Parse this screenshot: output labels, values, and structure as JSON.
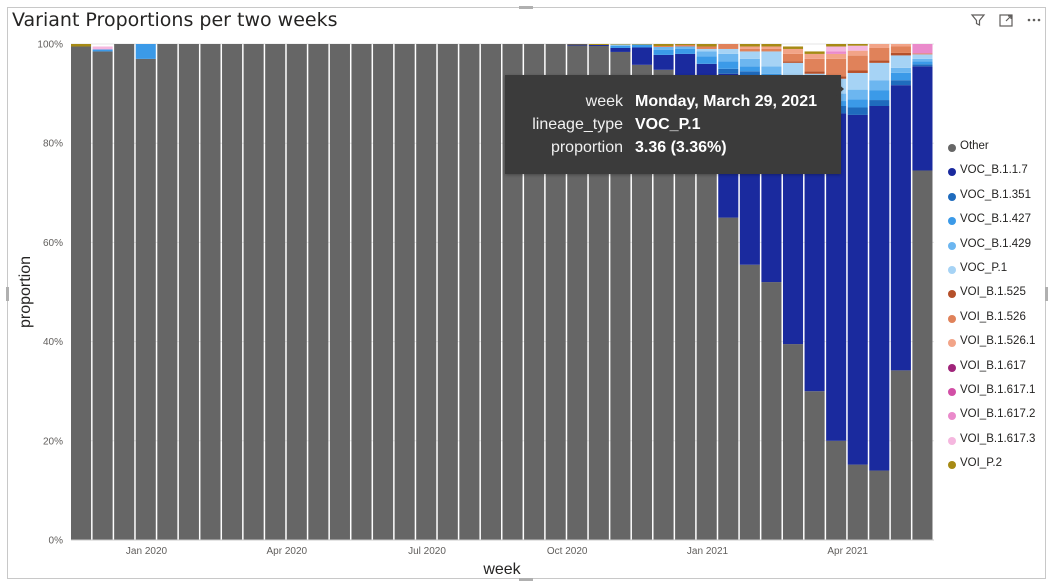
{
  "visual": {
    "title": "Variant Proportions per two weeks",
    "toolbar": [
      "filter-icon",
      "focus-mode-icon",
      "more-options-icon"
    ]
  },
  "tooltip": {
    "rows": [
      {
        "key": "week",
        "value": "Monday, March 29, 2021"
      },
      {
        "key": "lineage_type",
        "value": "VOC_P.1"
      },
      {
        "key": "proportion",
        "value": "3.36 (3.36%)"
      }
    ]
  },
  "chart_data": {
    "type": "bar",
    "stacked": true,
    "xlabel": "week",
    "ylabel": "proportion",
    "ylim": [
      0,
      100
    ],
    "y_ticks": [
      "0%",
      "20%",
      "40%",
      "60%",
      "80%",
      "100%"
    ],
    "x_tick_labels": [
      {
        "label": "Jan 2020",
        "index": 3
      },
      {
        "label": "Apr 2020",
        "index": 9.5
      },
      {
        "label": "Jul 2020",
        "index": 16
      },
      {
        "label": "Oct 2020",
        "index": 22.5
      },
      {
        "label": "Jan 2021",
        "index": 29
      },
      {
        "label": "Apr 2021",
        "index": 35.5
      }
    ],
    "legend_position": "right",
    "series": [
      {
        "name": "Other",
        "color": "#666666",
        "values": [
          99.5,
          98.5,
          100,
          97,
          100,
          100,
          100,
          100,
          100,
          100,
          100,
          100,
          100,
          100,
          100,
          100,
          100,
          100,
          100,
          100,
          100,
          100,
          100,
          99.7,
          99.6,
          98.4,
          95.8,
          94.8,
          93,
          87,
          65,
          55.5,
          52,
          39.5,
          30,
          20,
          15.2,
          14,
          34.2,
          74.5
        ]
      },
      {
        "name": "VOC_B.1.1.7",
        "color": "#1a2a9e",
        "values": [
          0,
          0,
          0,
          0,
          0.3,
          0,
          0,
          0,
          0,
          0,
          0,
          0,
          0,
          0,
          0,
          0,
          0,
          0,
          0,
          0,
          0,
          0,
          0,
          0.2,
          0.2,
          0.8,
          3.5,
          3,
          5,
          9,
          29,
          38,
          40,
          50,
          56,
          66,
          70.5,
          73.5,
          57.5,
          21
        ]
      },
      {
        "name": "VOC_B.1.351",
        "color": "#1f6bbd",
        "values": [
          0,
          0,
          0,
          0,
          0,
          0,
          0,
          0,
          0,
          0,
          0,
          0,
          0,
          0,
          0,
          0,
          0,
          0,
          0,
          0,
          0,
          0,
          0,
          0,
          0,
          0,
          0,
          0,
          0,
          0,
          1,
          1,
          1,
          1.2,
          1.5,
          1.5,
          1.5,
          1.2,
          1,
          0.4
        ]
      },
      {
        "name": "VOC_B.1.427",
        "color": "#3b9ae8",
        "values": [
          0,
          0.4,
          0,
          3,
          0,
          0,
          0,
          0,
          0,
          0,
          0,
          0,
          0,
          0,
          0,
          0,
          0,
          0,
          0,
          0,
          0,
          0,
          0,
          0,
          0,
          0.4,
          0.5,
          1,
          1,
          1.5,
          1.5,
          1,
          1,
          1,
          1,
          1,
          1.6,
          2,
          1.5,
          0.6
        ]
      },
      {
        "name": "VOC_B.1.429",
        "color": "#6cb6f0",
        "values": [
          0,
          0,
          0,
          0,
          0,
          0,
          0,
          0,
          0,
          0,
          0,
          0,
          0,
          0,
          0,
          0,
          0,
          0,
          0,
          0,
          0,
          0,
          0,
          0,
          0,
          0.1,
          0.1,
          0.6,
          0.5,
          1,
          1.5,
          1.5,
          1.5,
          2,
          2,
          1.5,
          2,
          2,
          1,
          0.5
        ]
      },
      {
        "name": "VOC_P.1",
        "color": "#a6d3f5",
        "values": [
          0,
          0,
          0,
          0,
          0,
          0,
          0,
          0,
          0,
          0,
          0,
          0,
          0,
          0,
          0,
          0,
          0,
          0,
          0,
          0,
          0,
          0,
          0,
          0,
          0,
          0.2,
          0,
          0,
          0,
          0.5,
          1,
          1.5,
          3,
          2.5,
          3.5,
          3,
          3.36,
          3.5,
          2.5,
          0.9
        ]
      },
      {
        "name": "VOI_B.1.525",
        "color": "#b5502a",
        "values": [
          0,
          0,
          0,
          0,
          0,
          0,
          0,
          0,
          0,
          0,
          0,
          0,
          0,
          0,
          0,
          0,
          0,
          0,
          0,
          0,
          0,
          0,
          0,
          0,
          0,
          0,
          0,
          0,
          0,
          0,
          0,
          0,
          0,
          0.3,
          0.5,
          0.5,
          0.5,
          0.5,
          0.5,
          0
        ]
      },
      {
        "name": "VOI_B.1.526",
        "color": "#e0825a",
        "values": [
          0,
          0,
          0,
          0,
          0,
          0,
          0,
          0,
          0,
          0,
          0,
          0,
          0,
          0,
          0,
          0,
          0,
          0,
          0,
          0,
          0,
          0,
          0,
          0,
          0,
          0,
          0,
          0.2,
          0.3,
          0.5,
          1,
          0.5,
          0.5,
          1.5,
          2.5,
          3.5,
          3,
          2.5,
          1.3,
          0.2
        ]
      },
      {
        "name": "VOI_B.1.526.1",
        "color": "#f2a488",
        "values": [
          0,
          0,
          0,
          0,
          0,
          0,
          0,
          0,
          0,
          0,
          0,
          0,
          0,
          0,
          0,
          0,
          0,
          0,
          0,
          0,
          0,
          0,
          0,
          0,
          0,
          0,
          0,
          0,
          0,
          0,
          0.5,
          0.5,
          0.5,
          1,
          1,
          1,
          1,
          1,
          1,
          0
        ]
      },
      {
        "name": "VOI_B.1.617",
        "color": "#a0247a",
        "values": [
          0,
          0,
          0,
          0,
          0,
          0,
          0,
          0,
          0,
          0,
          0,
          0,
          0,
          0,
          0,
          0,
          0,
          0,
          0,
          0,
          0,
          0,
          0,
          0,
          0,
          0,
          0,
          0,
          0,
          0,
          0,
          0,
          0,
          0,
          0,
          0,
          0,
          0,
          0,
          0
        ]
      },
      {
        "name": "VOI_B.1.617.1",
        "color": "#d24fa6",
        "values": [
          0,
          0,
          0,
          0,
          0,
          0,
          0,
          0,
          0,
          0,
          0,
          0,
          0,
          0,
          0,
          0,
          0,
          0,
          0,
          0,
          0,
          0,
          0,
          0,
          0,
          0,
          0,
          0,
          0,
          0,
          0,
          0,
          0,
          0,
          0,
          0,
          0,
          0,
          0,
          0
        ]
      },
      {
        "name": "VOI_B.1.617.2",
        "color": "#ea8acb",
        "values": [
          0,
          0,
          0,
          0,
          0,
          0,
          0,
          0,
          0,
          0,
          0,
          0,
          0,
          0,
          0,
          0,
          0,
          0,
          0,
          0,
          0,
          0,
          0,
          0,
          0,
          0,
          0,
          0,
          0,
          0,
          0,
          0,
          0,
          0,
          0,
          0.5,
          0,
          0.3,
          1.5,
          1.9
        ]
      },
      {
        "name": "VOI_B.1.617.3",
        "color": "#f5b7df",
        "values": [
          0,
          0.6,
          0,
          0,
          0,
          0,
          0,
          0,
          0,
          0,
          0,
          0,
          0,
          0,
          0,
          0,
          0,
          0,
          0,
          0,
          0,
          0,
          0,
          0,
          0,
          0,
          0,
          0,
          0,
          0,
          0,
          0,
          0,
          0,
          0,
          1,
          1,
          1,
          0.7,
          0
        ]
      },
      {
        "name": "VOI_P.2",
        "color": "#a68a14",
        "values": [
          0.5,
          0,
          0,
          0,
          0,
          0,
          0,
          0,
          0,
          0,
          0,
          0,
          0,
          0,
          0,
          0,
          0,
          0,
          0,
          0,
          0,
          0,
          0,
          0.1,
          0.2,
          0.1,
          0.1,
          0.4,
          0.2,
          0.5,
          0.5,
          0.5,
          0.5,
          0.5,
          0.5,
          0.5,
          0.34,
          0.5,
          0.5,
          0
        ]
      }
    ]
  }
}
